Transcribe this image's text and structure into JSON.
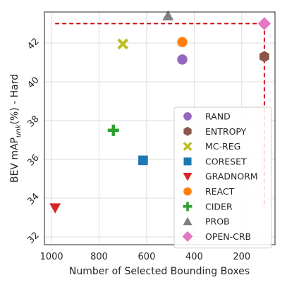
{
  "chart_data": {
    "type": "scatter",
    "xlabel": "Number of Selected Bounding Boxes",
    "ylabel_main": "BEV mAP",
    "ylabel_sub": "unk",
    "ylabel_tail": "(%) - Hard",
    "xlim": [
      1030,
      60
    ],
    "ylim": [
      31.6,
      43.6
    ],
    "x_reversed": true,
    "grid": true,
    "legend_placement": "lower-right",
    "xticks": [
      1000,
      800,
      600,
      400,
      200
    ],
    "yticks": [
      32,
      34,
      36,
      38,
      40,
      42
    ],
    "series": [
      {
        "name": "RAND",
        "x": 450,
        "y": 41.15,
        "marker": "circle",
        "color": "#9467bd"
      },
      {
        "name": "ENTROPY",
        "x": 105,
        "y": 41.3,
        "marker": "hexagon",
        "color": "#8c564b"
      },
      {
        "name": "MC-REG",
        "x": 700,
        "y": 41.95,
        "marker": "x",
        "color": "#bcbd22"
      },
      {
        "name": "CORESET",
        "x": 615,
        "y": 35.95,
        "marker": "square",
        "color": "#1f77b4"
      },
      {
        "name": "GRADNORM",
        "x": 985,
        "y": 33.5,
        "marker": "triangle-down",
        "color": "#d62728"
      },
      {
        "name": "REACT",
        "x": 450,
        "y": 42.05,
        "marker": "circle",
        "color": "#ff7f0e"
      },
      {
        "name": "CIDER",
        "x": 740,
        "y": 37.5,
        "marker": "plus",
        "color": "#2ca02c"
      },
      {
        "name": "PROB",
        "x": 510,
        "y": 43.4,
        "marker": "triangle-up",
        "color": "#7f7f7f"
      },
      {
        "name": "OPEN-CRB",
        "x": 105,
        "y": 43.0,
        "marker": "diamond",
        "color": "#e377c2"
      }
    ],
    "reference_lines": [
      {
        "orientation": "horizontal",
        "y": 43.0,
        "x_from": 985,
        "x_to": 105,
        "color": "#cc0000",
        "style": "dashed"
      },
      {
        "orientation": "vertical",
        "x": 105,
        "y_from": 43.0,
        "y_to": 33.5,
        "color": "#cc0000",
        "style": "dashed"
      }
    ]
  }
}
